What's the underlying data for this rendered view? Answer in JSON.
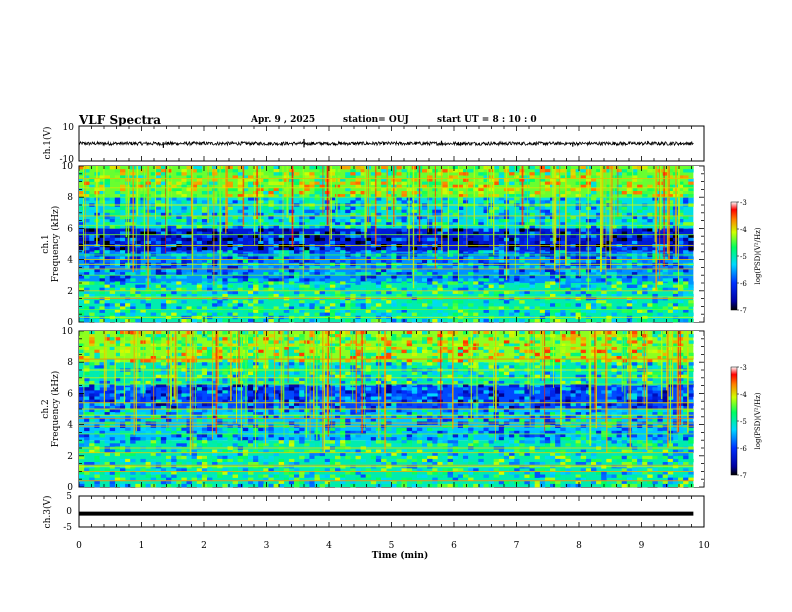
{
  "header": {
    "title": "VLF Spectra",
    "date": "Apr. 9 , 2025",
    "station": "station= OUJ",
    "start": "start UT = 8 : 10 : 0"
  },
  "chart_data": [
    {
      "type": "line",
      "panel": "ch1-waveform",
      "ylabel": "ch.1(V)",
      "ylim": [
        -10,
        10
      ],
      "yticks": [
        "10",
        "-10"
      ],
      "xlim": [
        0,
        10
      ],
      "description_of_trace": "noisy waveform centred near 0 V with amplitude ~±1 V and occasional spikes",
      "baseline": 0,
      "amplitude": 1,
      "spikes": [
        {
          "x": 1.35,
          "y": -2.5
        },
        {
          "x": 3.6,
          "y": 2.6
        },
        {
          "x": 3.6,
          "y": -2.2
        },
        {
          "x": 5.8,
          "y": 1.6
        },
        {
          "x": 7.9,
          "y": -1.8
        },
        {
          "x": 9.1,
          "y": 1.5
        }
      ],
      "trace_color": "#000000"
    },
    {
      "type": "heatmap",
      "panel": "ch1-spectrogram",
      "ylabel": "Frequency (kHz)",
      "channel_label": "ch.1",
      "ylim": [
        0,
        10
      ],
      "yticks": [
        "0",
        "2",
        "4",
        "6",
        "8",
        "10"
      ],
      "xlim": [
        0,
        10
      ],
      "data_xmax": 9.83,
      "colorbar": {
        "label": "log(PSD)(V²/Hz)",
        "range": [
          -7,
          -3
        ],
        "ticks": [
          "-3",
          "-4",
          "-5",
          "-6",
          "-7"
        ]
      },
      "bands": [
        {
          "y0": 0.0,
          "y1": 2.5,
          "level": -5.0
        },
        {
          "y0": 2.5,
          "y1": 4.5,
          "level": -5.6
        },
        {
          "y0": 4.5,
          "y1": 6.0,
          "level": -6.3
        },
        {
          "y0": 6.0,
          "y1": 8.0,
          "level": -5.2
        },
        {
          "y0": 8.0,
          "y1": 10.0,
          "level": -4.4
        }
      ],
      "lines_khz": [
        0.3,
        0.8,
        1.5,
        1.6,
        2.0,
        3.0,
        3.4,
        3.7,
        4.0,
        4.3,
        4.9,
        5.6,
        6.2,
        6.8,
        7.5,
        8.0,
        8.6,
        9.2
      ]
    },
    {
      "type": "heatmap",
      "panel": "ch2-spectrogram",
      "ylabel": "Frequency (kHz)",
      "channel_label": "ch.2",
      "ylim": [
        0,
        10
      ],
      "yticks": [
        "0",
        "2",
        "4",
        "6",
        "8",
        "10"
      ],
      "xlim": [
        0,
        10
      ],
      "data_xmax": 9.83,
      "colorbar": {
        "label": "log(PSD)(V²/Hz)",
        "range": [
          -7,
          -3
        ],
        "ticks": [
          "-3",
          "-4",
          "-5",
          "-6",
          "-7"
        ]
      },
      "bands": [
        {
          "y0": 0.0,
          "y1": 3.0,
          "level": -5.0
        },
        {
          "y0": 3.0,
          "y1": 5.0,
          "level": -5.4
        },
        {
          "y0": 5.0,
          "y1": 6.5,
          "level": -5.9
        },
        {
          "y0": 6.5,
          "y1": 8.0,
          "level": -5.0
        },
        {
          "y0": 8.0,
          "y1": 10.0,
          "level": -4.3
        }
      ],
      "lines_khz": [
        0.4,
        1.0,
        1.3,
        1.4,
        2.2,
        2.5,
        3.4,
        3.9,
        4.1,
        4.4,
        4.6,
        5.0,
        5.4,
        6.6,
        7.0,
        7.5,
        8.2,
        9.0
      ]
    },
    {
      "type": "line",
      "panel": "ch3-waveform",
      "ylabel": "ch.3(V)",
      "ylim": [
        -5,
        5
      ],
      "yticks": [
        "5",
        "0",
        "-5"
      ],
      "xlim": [
        0,
        10
      ],
      "xlabel": "Time (min)",
      "xticks": [
        "0",
        "1",
        "2",
        "3",
        "4",
        "5",
        "6",
        "7",
        "8",
        "9",
        "10"
      ],
      "baseline": -0.7,
      "data_xmax": 9.83,
      "trace_color": "#000000"
    }
  ]
}
